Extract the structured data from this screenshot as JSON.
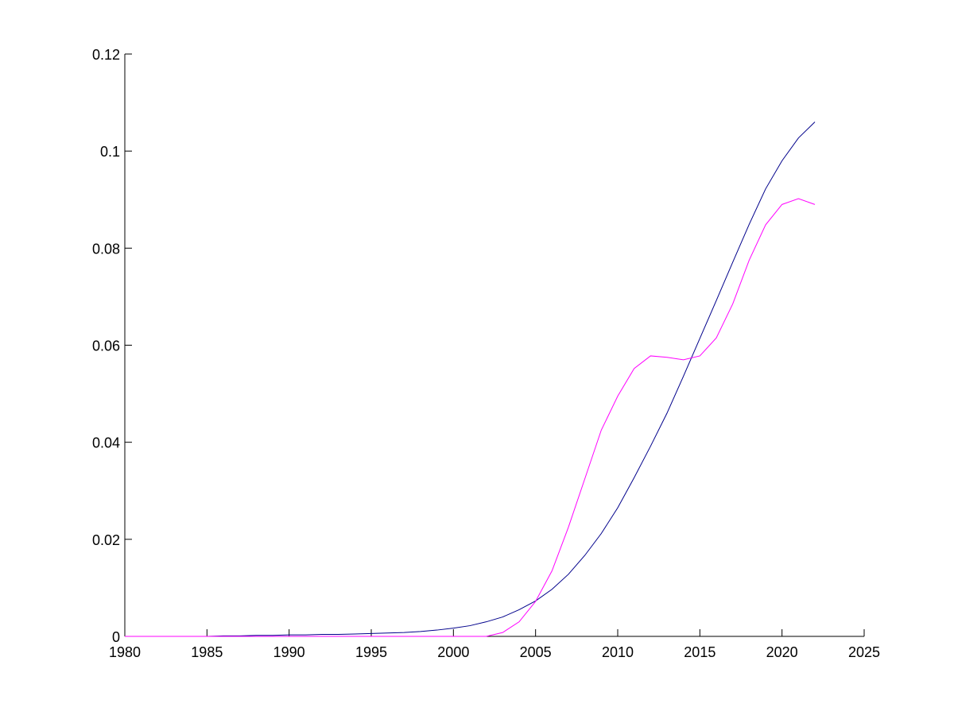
{
  "chart_data": {
    "type": "line",
    "title": "",
    "xlabel": "",
    "ylabel": "",
    "xlim": [
      1980,
      2025
    ],
    "ylim": [
      0,
      0.12
    ],
    "xticks": [
      1980,
      1985,
      1990,
      1995,
      2000,
      2005,
      2010,
      2015,
      2020,
      2025
    ],
    "xtick_labels": [
      "1980",
      "1985",
      "1990",
      "1995",
      "2000",
      "2005",
      "2010",
      "2015",
      "2020",
      "2025"
    ],
    "yticks": [
      0,
      0.02,
      0.04,
      0.06,
      0.08,
      0.1,
      0.12
    ],
    "ytick_labels": [
      "0",
      "0.02",
      "0.04",
      "0.06",
      "0.08",
      "0.1",
      "0.12"
    ],
    "grid": false,
    "legend": false,
    "series": [
      {
        "color": "#00008b",
        "x": [
          1980,
          1981,
          1982,
          1983,
          1984,
          1985,
          1986,
          1987,
          1988,
          1989,
          1990,
          1991,
          1992,
          1993,
          1994,
          1995,
          1996,
          1997,
          1998,
          1999,
          2000,
          2001,
          2002,
          2003,
          2004,
          2005,
          2006,
          2007,
          2008,
          2009,
          2010,
          2011,
          2012,
          2013,
          2014,
          2015,
          2016,
          2017,
          2018,
          2019,
          2020,
          2021,
          2022
        ],
        "y": [
          0,
          0,
          0,
          0,
          0,
          0,
          0.0001,
          0.0001,
          0.0002,
          0.0002,
          0.0003,
          0.0003,
          0.0004,
          0.0004,
          0.0005,
          0.0006,
          0.0007,
          0.0008,
          0.001,
          0.0013,
          0.0017,
          0.0022,
          0.003,
          0.004,
          0.0055,
          0.0073,
          0.0097,
          0.0128,
          0.0167,
          0.0212,
          0.0265,
          0.0327,
          0.0392,
          0.046,
          0.0536,
          0.0614,
          0.0692,
          0.0771,
          0.0849,
          0.0922,
          0.098,
          0.1027,
          0.106
        ]
      },
      {
        "color": "#ff00ff",
        "x": [
          1980,
          1981,
          1982,
          1983,
          1984,
          1985,
          1986,
          1987,
          1988,
          1989,
          1990,
          1991,
          1992,
          1993,
          1994,
          1995,
          1996,
          1997,
          1998,
          1999,
          2000,
          2001,
          2002,
          2003,
          2004,
          2005,
          2006,
          2007,
          2008,
          2009,
          2010,
          2011,
          2012,
          2013,
          2014,
          2015,
          2016,
          2017,
          2018,
          2019,
          2020,
          2021,
          2022
        ],
        "y": [
          0,
          0,
          0,
          0,
          0,
          0,
          0,
          0,
          0,
          0,
          0,
          0,
          0,
          0,
          0,
          0,
          0,
          0,
          0,
          0,
          0,
          0,
          0,
          0.0008,
          0.003,
          0.0072,
          0.0135,
          0.0225,
          0.0325,
          0.0425,
          0.0495,
          0.0552,
          0.0578,
          0.0575,
          0.057,
          0.0578,
          0.0615,
          0.0685,
          0.0775,
          0.0848,
          0.089,
          0.0902,
          0.089
        ]
      }
    ]
  }
}
